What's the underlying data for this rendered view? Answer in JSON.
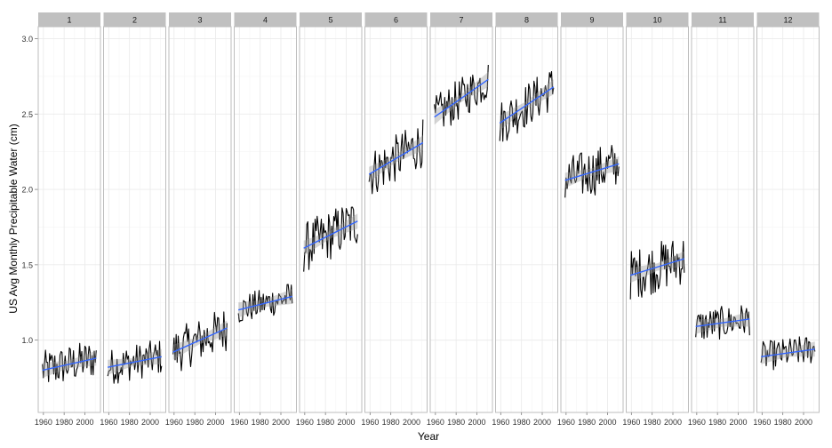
{
  "chart_data": {
    "type": "line",
    "facet_variable": "month",
    "xlabel": "Year",
    "ylabel": "US Avg Monthly Precipitable Water (cm)",
    "xlim": [
      1955,
      2015
    ],
    "ylim": [
      0.52,
      3.08
    ],
    "x_ticks": [
      1960,
      1980,
      2000
    ],
    "y_ticks": [
      1.0,
      1.5,
      2.0,
      2.5,
      3.0
    ],
    "y_tick_labels": [
      "1.0",
      "1.5",
      "2.0",
      "2.5",
      "3.0"
    ],
    "grid": true,
    "years": [
      1959,
      2011
    ],
    "colors": {
      "series": "#000000",
      "trend": "#3366ff",
      "ribbon": "#999999",
      "strip": "#c0c0c0",
      "panel_border": "#bdbdbd",
      "grid_major": "#ebebeb",
      "grid_minor": "#f5f5f5"
    },
    "facets": [
      {
        "label": "1",
        "trend": [
          0.8,
          0.88
        ],
        "mean": 0.84,
        "spread": 0.13
      },
      {
        "label": "2",
        "trend": [
          0.82,
          0.89
        ],
        "mean": 0.85,
        "spread": 0.12
      },
      {
        "label": "3",
        "trend": [
          0.92,
          1.08
        ],
        "mean": 1.0,
        "spread": 0.15
      },
      {
        "label": "4",
        "trend": [
          1.2,
          1.29
        ],
        "mean": 1.24,
        "spread": 0.1
      },
      {
        "label": "5",
        "trend": [
          1.61,
          1.79
        ],
        "mean": 1.7,
        "spread": 0.17
      },
      {
        "label": "6",
        "trend": [
          2.1,
          2.31
        ],
        "mean": 2.2,
        "spread": 0.16
      },
      {
        "label": "7",
        "trend": [
          2.48,
          2.73
        ],
        "mean": 2.6,
        "spread": 0.14
      },
      {
        "label": "8",
        "trend": [
          2.44,
          2.68
        ],
        "mean": 2.56,
        "spread": 0.15
      },
      {
        "label": "9",
        "trend": [
          2.06,
          2.17
        ],
        "mean": 2.11,
        "spread": 0.16
      },
      {
        "label": "10",
        "trend": [
          1.43,
          1.54
        ],
        "mean": 1.48,
        "spread": 0.17
      },
      {
        "label": "11",
        "trend": [
          1.09,
          1.14
        ],
        "mean": 1.11,
        "spread": 0.11
      },
      {
        "label": "12",
        "trend": [
          0.89,
          0.94
        ],
        "mean": 0.91,
        "spread": 0.1
      }
    ]
  }
}
